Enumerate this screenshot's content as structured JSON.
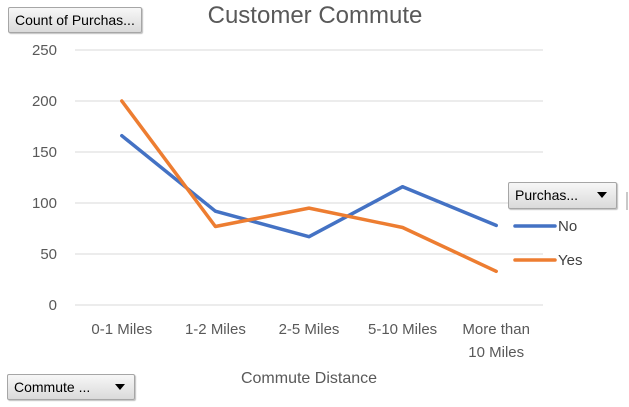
{
  "filters": {
    "values_field": "Count of Purchas...",
    "legend_field": "Purchas...",
    "axis_field": "Commute ..."
  },
  "chart_data": {
    "type": "line",
    "title": "Customer Commute",
    "xlabel": "Commute Distance",
    "ylabel": "",
    "categories": [
      "0-1 Miles",
      "1-2 Miles",
      "2-5 Miles",
      "5-10 Miles",
      "More than 10 Miles"
    ],
    "ylim": [
      0,
      250
    ],
    "yticks": [
      0,
      50,
      100,
      150,
      200,
      250
    ],
    "grid": true,
    "legend_position": "right",
    "series": [
      {
        "name": "No",
        "color": "#4472C4",
        "values": [
          166,
          92,
          67,
          116,
          78
        ]
      },
      {
        "name": "Yes",
        "color": "#ED7D31",
        "values": [
          200,
          77,
          95,
          76,
          33
        ]
      }
    ]
  }
}
